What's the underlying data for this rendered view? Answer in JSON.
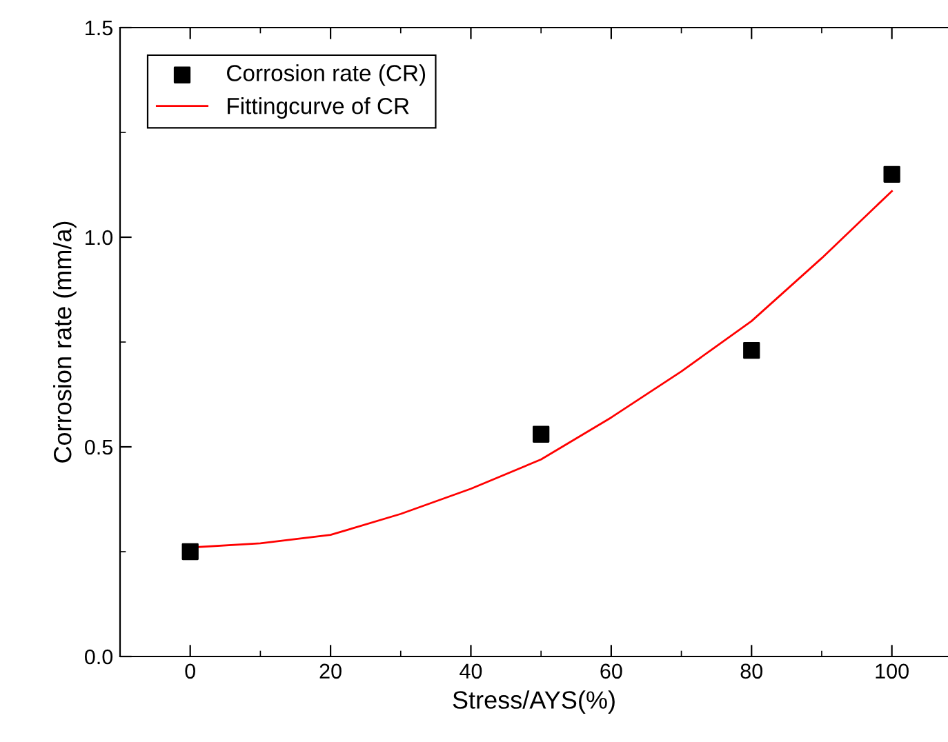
{
  "chart_data": {
    "type": "scatter",
    "xlabel": "Stress/AYS(%)",
    "ylabel": "Corrosion rate (mm/a)",
    "x": [
      0,
      50,
      80,
      100
    ],
    "series": [
      {
        "name": "Corrosion rate (CR)",
        "color": "#000000",
        "marker": "square",
        "values": [
          0.25,
          0.53,
          0.73,
          1.15
        ]
      },
      {
        "name": "Fittingcurve of CR",
        "type": "line",
        "color": "#ff0000",
        "marker": "none",
        "line_style": "solid",
        "x": [
          0,
          10,
          20,
          30,
          40,
          50,
          60,
          70,
          80,
          90,
          100
        ],
        "values": [
          0.26,
          0.27,
          0.29,
          0.34,
          0.4,
          0.47,
          0.57,
          0.68,
          0.8,
          0.95,
          1.11
        ]
      }
    ],
    "xlim": [
      -10,
      108
    ],
    "xticks": [
      0,
      20,
      40,
      60,
      80,
      100
    ],
    "ylim": [
      0,
      1.5
    ],
    "yticks": [
      {
        "value": 0,
        "label": "0.0"
      },
      0.5,
      {
        "value": 1,
        "label": "1.0"
      },
      1.5
    ],
    "grid": false,
    "legend": "top left"
  }
}
